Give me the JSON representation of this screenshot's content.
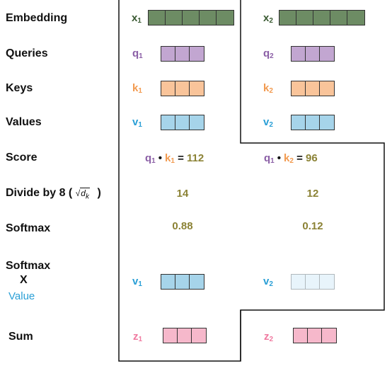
{
  "row_labels": {
    "embedding": "Embedding",
    "queries": "Queries",
    "keys": "Keys",
    "values": "Values",
    "score": "Score",
    "divide": "Divide by 8 (",
    "divide_close": ")",
    "sqrt_symbol": "√",
    "sqrt_var": "d",
    "sqrt_sub": "k",
    "softmax": "Softmax",
    "softmax_x_1": "Softmax",
    "softmax_x_2": "X",
    "softmax_x_3": "Value",
    "sum": "Sum"
  },
  "vectors": {
    "x1": {
      "letter": "x",
      "sub": "1"
    },
    "x2": {
      "letter": "x",
      "sub": "2"
    },
    "q1": {
      "letter": "q",
      "sub": "1"
    },
    "q2": {
      "letter": "q",
      "sub": "2"
    },
    "k1": {
      "letter": "k",
      "sub": "1"
    },
    "k2": {
      "letter": "k",
      "sub": "2"
    },
    "v1": {
      "letter": "v",
      "sub": "1"
    },
    "v2": {
      "letter": "v",
      "sub": "2"
    },
    "wv1": {
      "letter": "v",
      "sub": "1"
    },
    "wv2": {
      "letter": "v",
      "sub": "2"
    },
    "z1": {
      "letter": "z",
      "sub": "1"
    },
    "z2": {
      "letter": "z",
      "sub": "2"
    }
  },
  "score": {
    "s1": {
      "q": "q",
      "q_sub": "1",
      "dot": "•",
      "k": "k",
      "k_sub": "1",
      "eq": "=",
      "value": "112"
    },
    "s2": {
      "q": "q",
      "q_sub": "1",
      "dot": "•",
      "k": "k",
      "k_sub": "2",
      "eq": "=",
      "value": "96"
    }
  },
  "divided": {
    "d1": "14",
    "d2": "12"
  },
  "softmax": {
    "sm1": "0.88",
    "sm2": "0.12"
  },
  "colors": {
    "embedding_fill": "#6d8c64",
    "embedding_text": "#3a5a32",
    "query_fill": "#c2a6d1",
    "query_text": "#8b5fa6",
    "key_fill": "#f9c49a",
    "key_text": "#f29a4f",
    "value_fill": "#a6d4ea",
    "value_text": "#2a9fd6",
    "value_faded_fill": "#e8f4fb",
    "sum_fill": "#f6b8cb",
    "sum_text": "#f07aa0",
    "number_text": "#8b8235"
  }
}
